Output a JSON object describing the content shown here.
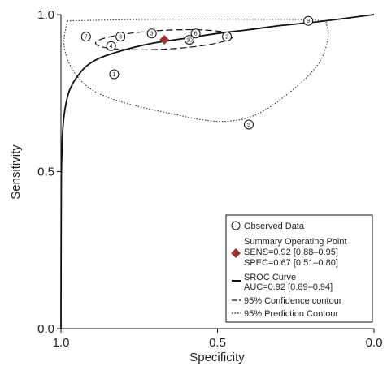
{
  "chart_data": {
    "type": "scatter",
    "xlabel": "Specificity",
    "ylabel": "Sensitivity",
    "xlim": [
      1.0,
      0.0
    ],
    "ylim": [
      0.0,
      1.0
    ],
    "x_ticks": [
      "1.0",
      "0.5",
      "0.0"
    ],
    "y_ticks": [
      "0.0",
      "0.5",
      "1.0"
    ],
    "grid": false,
    "legend_position": "bottom-right",
    "studies": [
      {
        "id": "1",
        "specificity": 0.83,
        "sensitivity": 0.81
      },
      {
        "id": "2",
        "specificity": 0.47,
        "sensitivity": 0.93
      },
      {
        "id": "3",
        "specificity": 0.71,
        "sensitivity": 0.94
      },
      {
        "id": "4",
        "specificity": 0.84,
        "sensitivity": 0.9
      },
      {
        "id": "5",
        "specificity": 0.4,
        "sensitivity": 0.65
      },
      {
        "id": "6",
        "specificity": 0.57,
        "sensitivity": 0.94
      },
      {
        "id": "7",
        "specificity": 0.92,
        "sensitivity": 0.93
      },
      {
        "id": "8",
        "specificity": 0.81,
        "sensitivity": 0.93
      },
      {
        "id": "9",
        "specificity": 0.21,
        "sensitivity": 0.98
      },
      {
        "id": "10",
        "specificity": 0.59,
        "sensitivity": 0.92
      }
    ],
    "summary_point": {
      "specificity": 0.67,
      "sensitivity": 0.92
    },
    "sroc_curve": [
      [
        1.0,
        0.0
      ],
      [
        0.999,
        0.45
      ],
      [
        0.997,
        0.56
      ],
      [
        0.995,
        0.62
      ],
      [
        0.99,
        0.68
      ],
      [
        0.98,
        0.735
      ],
      [
        0.97,
        0.765
      ],
      [
        0.95,
        0.8
      ],
      [
        0.92,
        0.835
      ],
      [
        0.88,
        0.86
      ],
      [
        0.83,
        0.878
      ],
      [
        0.77,
        0.895
      ],
      [
        0.7,
        0.91
      ],
      [
        0.6,
        0.925
      ],
      [
        0.5,
        0.94
      ],
      [
        0.4,
        0.952
      ],
      [
        0.3,
        0.965
      ],
      [
        0.2,
        0.975
      ],
      [
        0.1,
        0.987
      ],
      [
        0.0,
        1.0
      ]
    ],
    "confidence_contour": {
      "center": [
        0.67,
        0.92
      ],
      "rx": 0.22,
      "ry": 0.03,
      "angle": -3
    },
    "prediction_contour": [
      [
        0.98,
        0.98
      ],
      [
        0.7,
        0.985
      ],
      [
        0.4,
        0.985
      ],
      [
        0.18,
        0.982
      ],
      [
        0.15,
        0.96
      ],
      [
        0.15,
        0.91
      ],
      [
        0.18,
        0.84
      ],
      [
        0.26,
        0.76
      ],
      [
        0.38,
        0.68
      ],
      [
        0.5,
        0.66
      ],
      [
        0.65,
        0.685
      ],
      [
        0.8,
        0.72
      ],
      [
        0.9,
        0.76
      ],
      [
        0.96,
        0.82
      ],
      [
        0.99,
        0.9
      ],
      [
        0.98,
        0.98
      ]
    ],
    "legend": {
      "observed": "Observed Data",
      "summary_title": "Summary Operating Point",
      "sens": "SENS=0.92 [0.88–0.95]",
      "spec": "SPEC=0.67 [0.51–0.80]",
      "sroc_title": "SROC Curve",
      "auc": "AUC=0.92 [0.89–0.94]",
      "confidence": "95% Confidence contour",
      "prediction": "95% Prediction Contour"
    },
    "colors": {
      "summary": "#9b3334",
      "line": "#111111"
    }
  }
}
